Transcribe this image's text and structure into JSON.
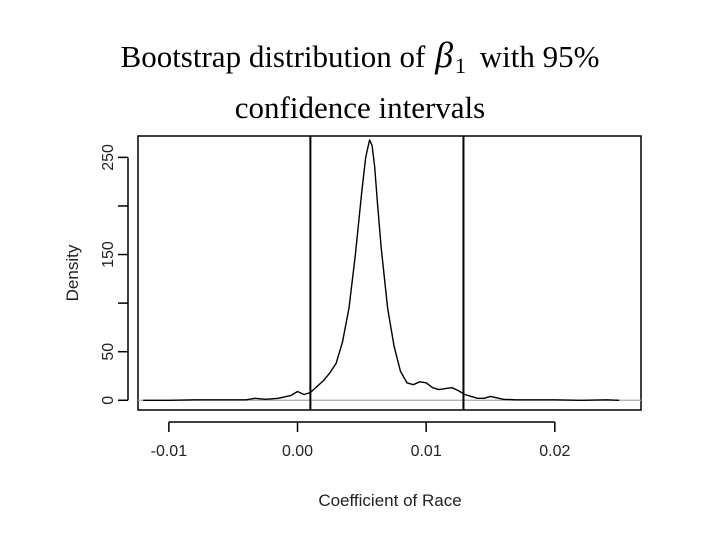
{
  "slide": {
    "title_part1": "Bootstrap distribution of",
    "title_symbol": "β",
    "title_subscript": "1",
    "title_part2": "with 95%",
    "title_line2": "confidence intervals"
  },
  "chart_data": {
    "type": "line",
    "xlabel": "Coefficient of Race",
    "ylabel": "Density",
    "xlim": [
      -0.0124,
      0.0267
    ],
    "ylim": [
      -10,
      272
    ],
    "xticks": [
      -0.01,
      0.0,
      0.01,
      0.02
    ],
    "xtick_labels": [
      "-0.01",
      "0.00",
      "0.01",
      "0.02"
    ],
    "yticks": [
      0,
      50,
      100,
      150,
      200,
      250
    ],
    "ytick_labels": [
      "0",
      "50",
      "",
      "150",
      "",
      "250"
    ],
    "grid": false,
    "baseline_y": 0,
    "confidence_interval": [
      0.001,
      0.0129
    ],
    "series": [
      {
        "x": [
          -0.012,
          -0.01,
          -0.008,
          -0.006,
          -0.004,
          -0.0033,
          -0.0025,
          -0.0015,
          -0.0005,
          0.0,
          0.0005,
          0.001,
          0.0015,
          0.002,
          0.0025,
          0.003,
          0.0035,
          0.004,
          0.0045,
          0.005,
          0.0053,
          0.0056,
          0.0058,
          0.006,
          0.0062,
          0.0065,
          0.007,
          0.0075,
          0.008,
          0.0085,
          0.009,
          0.0095,
          0.01,
          0.0105,
          0.011,
          0.0115,
          0.012,
          0.0125,
          0.013,
          0.0135,
          0.014,
          0.0145,
          0.015,
          0.016,
          0.017,
          0.018,
          0.019,
          0.02,
          0.022,
          0.024,
          0.025
        ],
        "y": [
          0,
          0,
          0.5,
          0.5,
          0.5,
          2,
          1,
          2,
          5,
          9,
          6,
          8,
          14,
          20,
          28,
          38,
          60,
          95,
          150,
          215,
          250,
          268,
          262,
          240,
          205,
          158,
          95,
          56,
          30,
          18,
          16,
          19,
          18,
          13,
          11,
          12,
          13,
          10,
          6,
          4,
          2,
          2,
          4,
          1,
          0.5,
          0.5,
          0.5,
          0.5,
          0,
          0.5,
          0
        ]
      }
    ]
  }
}
